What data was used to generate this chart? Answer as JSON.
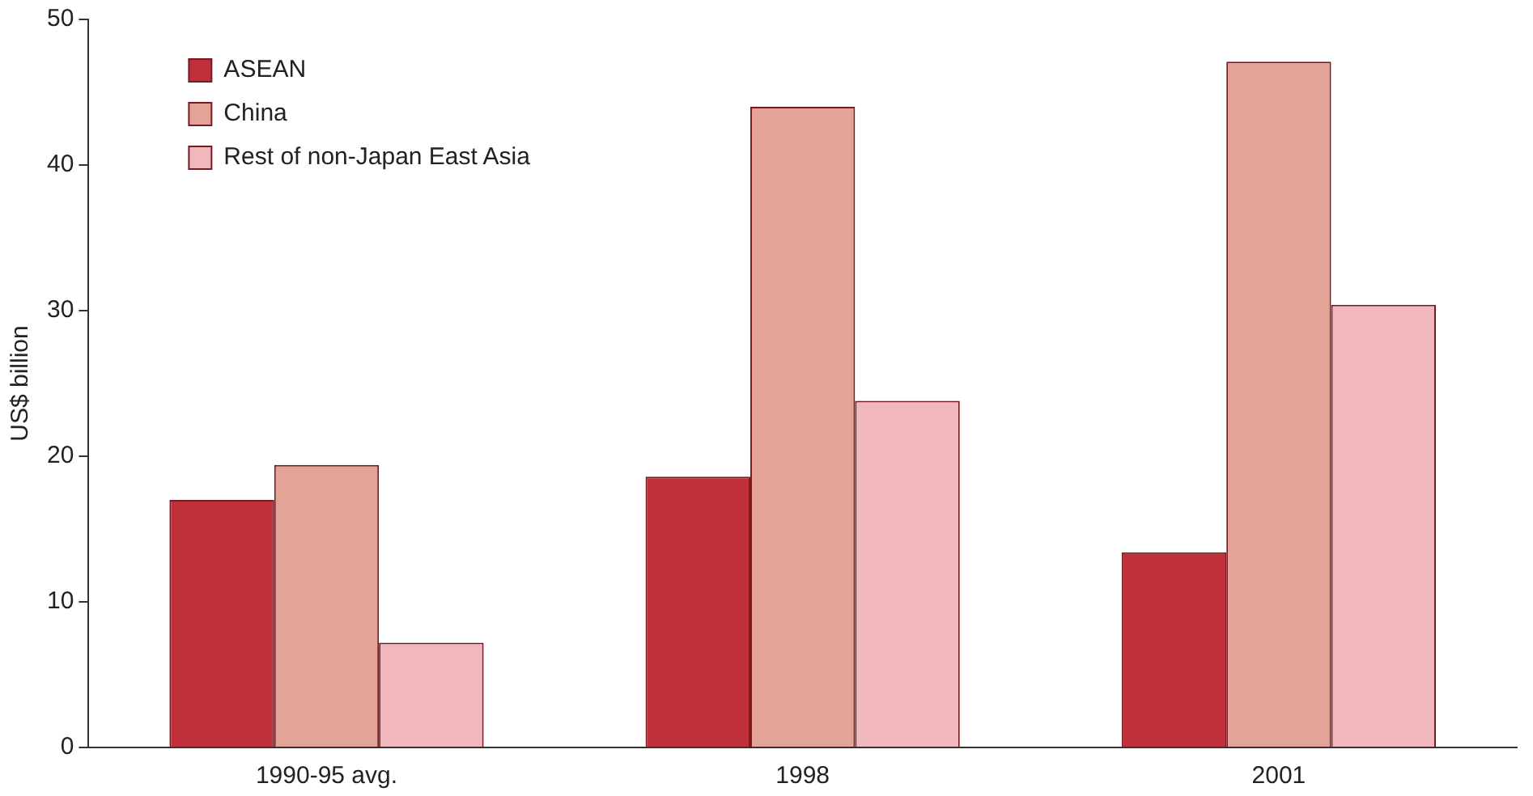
{
  "chart_data": {
    "type": "bar",
    "ylabel": "US$ billion",
    "categories": [
      "1990-95 avg.",
      "1998",
      "2001"
    ],
    "series": [
      {
        "name": "ASEAN",
        "color": "#c0303a",
        "values": [
          17.0,
          18.6,
          13.4
        ]
      },
      {
        "name": "China",
        "color": "#e3a397",
        "values": [
          19.4,
          44.0,
          47.1
        ]
      },
      {
        "name": "Rest of non-Japan East Asia",
        "color": "#f0b8bc",
        "values": [
          7.2,
          23.8,
          30.4
        ]
      }
    ],
    "ylim": [
      0,
      50
    ],
    "yticks": [
      0,
      10,
      20,
      30,
      40,
      50
    ],
    "grid": false,
    "legend": "top left"
  }
}
